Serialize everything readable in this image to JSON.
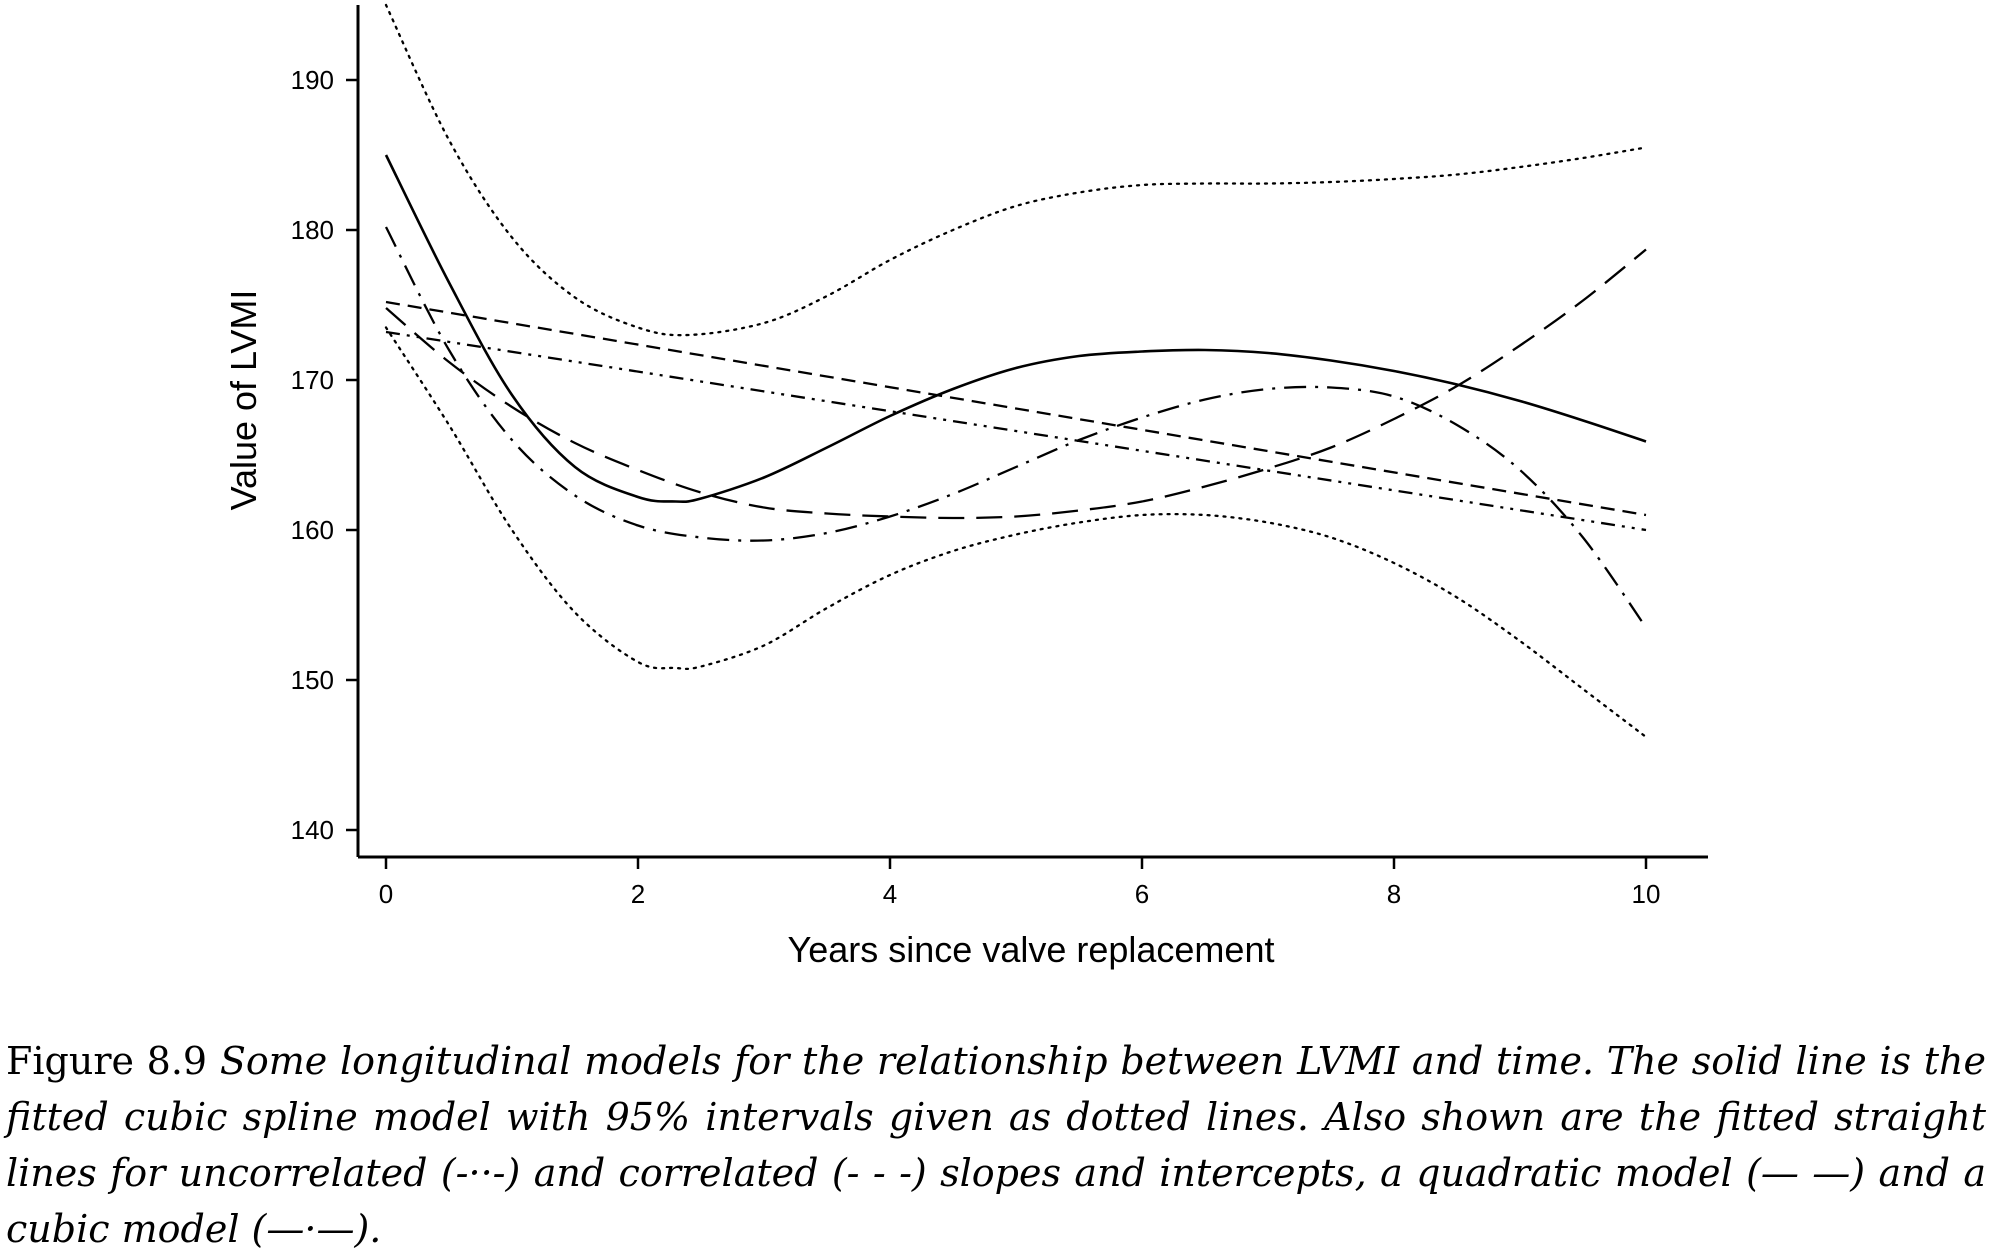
{
  "chart_data": {
    "type": "line",
    "title": "",
    "xlabel": "Years since valve replacement",
    "ylabel": "Value of LVMI",
    "xlim": [
      -0.2,
      10.5
    ],
    "ylim": [
      138,
      195
    ],
    "xticks": [
      0,
      2,
      4,
      6,
      8,
      10
    ],
    "yticks": [
      140,
      150,
      160,
      170,
      180,
      190
    ],
    "grid": false,
    "legend": "none",
    "series": [
      {
        "style": "solid",
        "x": [
          0,
          0.5,
          1,
          1.5,
          2,
          2.3,
          2.5,
          3,
          3.5,
          4,
          4.5,
          5,
          5.5,
          6,
          6.5,
          7,
          7.5,
          8,
          8.5,
          9,
          9.5,
          10
        ],
        "y": [
          185,
          176.5,
          169,
          164.2,
          162.2,
          161.9,
          162.1,
          163.5,
          165.5,
          167.6,
          169.4,
          170.8,
          171.6,
          171.9,
          172,
          171.8,
          171.3,
          170.6,
          169.7,
          168.6,
          167.3,
          165.9
        ]
      },
      {
        "style": "dotted",
        "x": [
          0,
          0.5,
          1,
          1.5,
          2,
          2.4,
          3,
          3.5,
          4,
          4.5,
          5,
          5.5,
          6,
          6.5,
          7,
          7.5,
          8,
          8.5,
          9,
          9.5,
          10
        ],
        "y": [
          195,
          186,
          179.5,
          175.5,
          173.5,
          173,
          173.8,
          175.6,
          178,
          180,
          181.6,
          182.5,
          183,
          183.1,
          183.1,
          183.2,
          183.4,
          183.7,
          184.2,
          184.8,
          185.5
        ]
      },
      {
        "style": "dotted",
        "x": [
          0,
          0.5,
          1,
          1.5,
          2,
          2.3,
          2.5,
          3,
          3.5,
          4,
          4.5,
          5,
          5.5,
          6,
          6.5,
          7,
          7.5,
          8,
          8.5,
          9,
          9.5,
          10
        ],
        "y": [
          173.5,
          167,
          160,
          154.5,
          151.2,
          150.8,
          150.9,
          152.3,
          154.8,
          157,
          158.6,
          159.7,
          160.5,
          161,
          161,
          160.5,
          159.5,
          157.8,
          155.5,
          152.6,
          149.4,
          146.2
        ]
      },
      {
        "style": "dash-dot-dot",
        "x": [
          0,
          10
        ],
        "y": [
          173.2,
          160
        ]
      },
      {
        "style": "short-dash",
        "x": [
          0,
          10
        ],
        "y": [
          175.2,
          161
        ]
      },
      {
        "style": "long-dash",
        "x": [
          0,
          0.5,
          1,
          1.5,
          2,
          2.5,
          3,
          3.5,
          4,
          4.5,
          5,
          5.5,
          6,
          6.5,
          7,
          7.5,
          8,
          8.5,
          9,
          9.5,
          10
        ],
        "y": [
          174.8,
          171.2,
          168.2,
          165.8,
          164,
          162.5,
          161.5,
          161.1,
          160.9,
          160.8,
          160.9,
          161.3,
          161.9,
          162.9,
          164.1,
          165.5,
          167.4,
          169.6,
          172.3,
          175.3,
          178.7
        ]
      },
      {
        "style": "dash-dot",
        "x": [
          0,
          0.5,
          1,
          1.5,
          2,
          2.5,
          3,
          3.5,
          4,
          4.5,
          5,
          5.5,
          6,
          6.5,
          7,
          7.5,
          8,
          8.5,
          9,
          9.5,
          10
        ],
        "y": [
          180.2,
          172,
          166,
          162.3,
          160.3,
          159.5,
          159.3,
          159.8,
          160.9,
          162.4,
          164.2,
          166,
          167.5,
          168.7,
          169.4,
          169.5,
          168.9,
          167,
          164,
          159.5,
          153.5
        ]
      }
    ]
  },
  "caption": {
    "figure_number": "Figure 8.9",
    "text": "Some longitudinal models for the relationship between LVMI and time. The solid line is the fitted cubic spline model with 95% intervals given as dotted lines. Also shown are the fitted straight lines for uncorrelated (-··-) and correlated (- - -) slopes and intercepts, a quadratic model (— —) and a cubic model (—·—)."
  }
}
